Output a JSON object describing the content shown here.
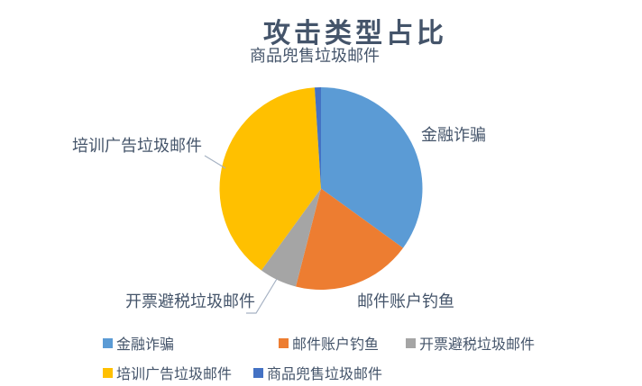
{
  "chart_data": {
    "type": "pie",
    "title": "攻击类型占比",
    "categories": [
      "金融诈骗",
      "邮件账户钓鱼",
      "开票避税垃圾邮件",
      "培训广告垃圾邮件",
      "商品兜售垃圾邮件"
    ],
    "values": [
      35,
      19,
      6,
      39,
      1
    ],
    "value_unit": "percent (estimated from slice angles, no numeric labels shown)",
    "colors": [
      "#5B9BD5",
      "#ED7D31",
      "#A5A5A5",
      "#FFC000",
      "#4472C4"
    ],
    "start_angle_deg": 0,
    "direction": "clockwise",
    "legend_position": "bottom",
    "data_labels": "category names outside slices",
    "title_color": "#44546A",
    "label_color": "#44546A",
    "leader_line_color": "#A6B2C3",
    "background": "#FFFFFF"
  },
  "callouts": {
    "top": "商品兜售垃圾邮件",
    "right": "金融诈骗",
    "bottom_right": "邮件账户钓鱼",
    "bottom_left": "开票避税垃圾邮件",
    "left": "培训广告垃圾邮件"
  },
  "legend": {
    "items": [
      {
        "label": "金融诈骗",
        "color": "#5B9BD5"
      },
      {
        "label": "邮件账户钓鱼",
        "color": "#ED7D31"
      },
      {
        "label": "开票避税垃圾邮件",
        "color": "#A5A5A5"
      },
      {
        "label": "培训广告垃圾邮件",
        "color": "#FFC000"
      },
      {
        "label": "商品兜售垃圾邮件",
        "color": "#4472C4"
      }
    ]
  }
}
